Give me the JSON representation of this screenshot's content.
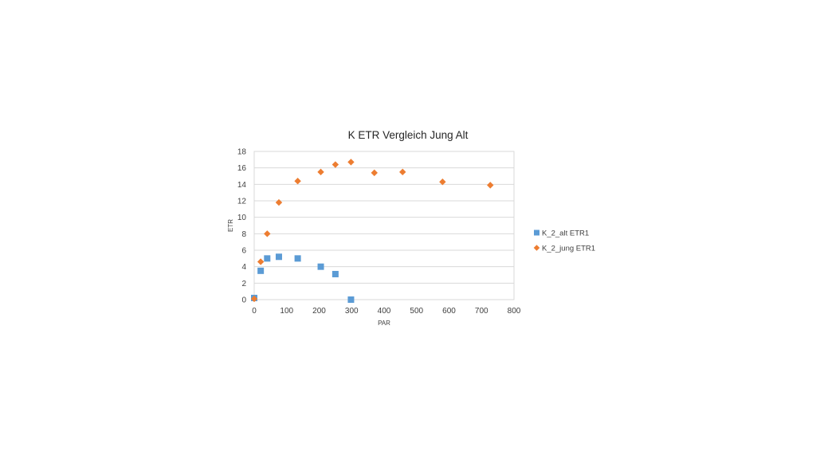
{
  "chart_data": {
    "type": "scatter",
    "title": "K ETR Vergleich Jung Alt",
    "xlabel": "PAR",
    "ylabel": "ETR",
    "xlim": [
      0,
      800
    ],
    "ylim": [
      0,
      18
    ],
    "xticks": [
      "0",
      "100",
      "200",
      "300",
      "400",
      "500",
      "600",
      "700",
      "800"
    ],
    "yticks": [
      "0",
      "2",
      "4",
      "6",
      "8",
      "10",
      "12",
      "14",
      "16",
      "18"
    ],
    "grid": "horizontal",
    "legend_position": "right",
    "series": [
      {
        "name": "K_2_alt ETR1",
        "marker": "square",
        "color": "#5b9bd5",
        "points": [
          {
            "x": 0,
            "y": 0.2
          },
          {
            "x": 20,
            "y": 3.5
          },
          {
            "x": 40,
            "y": 5.0
          },
          {
            "x": 76,
            "y": 5.2
          },
          {
            "x": 134,
            "y": 5.0
          },
          {
            "x": 205,
            "y": 4.0
          },
          {
            "x": 250,
            "y": 3.1
          },
          {
            "x": 298,
            "y": 0.0
          }
        ]
      },
      {
        "name": "K_2_jung ETR1",
        "marker": "diamond",
        "color": "#ed7d31",
        "points": [
          {
            "x": 0,
            "y": 0.1
          },
          {
            "x": 20,
            "y": 4.6
          },
          {
            "x": 40,
            "y": 8.0
          },
          {
            "x": 76,
            "y": 11.8
          },
          {
            "x": 134,
            "y": 14.4
          },
          {
            "x": 205,
            "y": 15.5
          },
          {
            "x": 250,
            "y": 16.4
          },
          {
            "x": 298,
            "y": 16.7
          },
          {
            "x": 370,
            "y": 15.4
          },
          {
            "x": 457,
            "y": 15.5
          },
          {
            "x": 580,
            "y": 14.3
          },
          {
            "x": 727,
            "y": 13.9
          }
        ]
      }
    ]
  }
}
